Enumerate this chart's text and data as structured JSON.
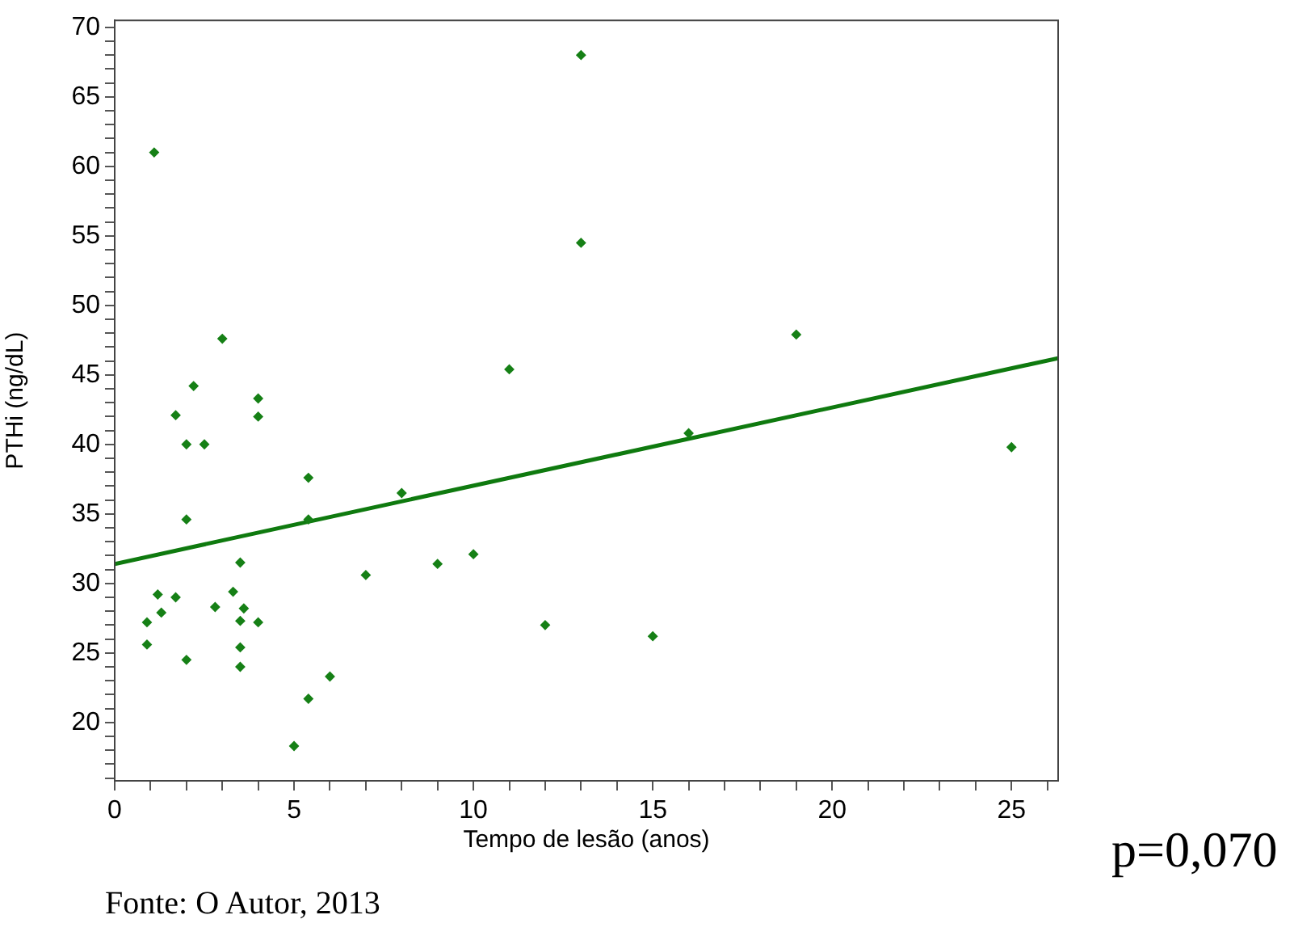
{
  "chart_data": {
    "type": "scatter",
    "xlabel": "Tempo de lesão (anos)",
    "ylabel": "PTHi (ng/dL)",
    "annotations": [
      "p=0,070",
      "Fonte: O Autor, 2013"
    ],
    "xlim": [
      0,
      26.3
    ],
    "ylim": [
      15.8,
      70.5
    ],
    "xticks": [
      0,
      {
        "value": 1,
        "label": null
      },
      {
        "value": 2,
        "label": null
      },
      {
        "value": 3,
        "label": null
      },
      {
        "value": 4,
        "label": null
      },
      5,
      {
        "value": 6,
        "label": null
      },
      {
        "value": 7,
        "label": null
      },
      {
        "value": 8,
        "label": null
      },
      {
        "value": 9,
        "label": null
      },
      10,
      {
        "value": 11,
        "label": null
      },
      {
        "value": 12,
        "label": null
      },
      {
        "value": 13,
        "label": null
      },
      {
        "value": 14,
        "label": null
      },
      15,
      {
        "value": 16,
        "label": null
      },
      {
        "value": 17,
        "label": null
      },
      {
        "value": 18,
        "label": null
      },
      {
        "value": 19,
        "label": null
      },
      20,
      {
        "value": 21,
        "label": null
      },
      {
        "value": 22,
        "label": null
      },
      {
        "value": 23,
        "label": null
      },
      {
        "value": 24,
        "label": null
      },
      25,
      {
        "value": 26,
        "label": null
      }
    ],
    "yticks": [
      {
        "value": 16,
        "label": null
      },
      {
        "value": 17,
        "label": null
      },
      {
        "value": 18,
        "label": null
      },
      {
        "value": 19,
        "label": null
      },
      20,
      {
        "value": 21,
        "label": null
      },
      {
        "value": 22,
        "label": null
      },
      {
        "value": 23,
        "label": null
      },
      {
        "value": 24,
        "label": null
      },
      25,
      {
        "value": 26,
        "label": null
      },
      {
        "value": 27,
        "label": null
      },
      {
        "value": 28,
        "label": null
      },
      {
        "value": 29,
        "label": null
      },
      30,
      {
        "value": 31,
        "label": null
      },
      {
        "value": 32,
        "label": null
      },
      {
        "value": 33,
        "label": null
      },
      {
        "value": 34,
        "label": null
      },
      35,
      {
        "value": 36,
        "label": null
      },
      {
        "value": 37,
        "label": null
      },
      {
        "value": 38,
        "label": null
      },
      {
        "value": 39,
        "label": null
      },
      40,
      {
        "value": 41,
        "label": null
      },
      {
        "value": 42,
        "label": null
      },
      {
        "value": 43,
        "label": null
      },
      {
        "value": 44,
        "label": null
      },
      45,
      {
        "value": 46,
        "label": null
      },
      {
        "value": 47,
        "label": null
      },
      {
        "value": 48,
        "label": null
      },
      {
        "value": 49,
        "label": null
      },
      50,
      {
        "value": 51,
        "label": null
      },
      {
        "value": 52,
        "label": null
      },
      {
        "value": 53,
        "label": null
      },
      {
        "value": 54,
        "label": null
      },
      55,
      {
        "value": 56,
        "label": null
      },
      {
        "value": 57,
        "label": null
      },
      {
        "value": 58,
        "label": null
      },
      {
        "value": 59,
        "label": null
      },
      60,
      {
        "value": 61,
        "label": null
      },
      {
        "value": 62,
        "label": null
      },
      {
        "value": 63,
        "label": null
      },
      {
        "value": 64,
        "label": null
      },
      65,
      {
        "value": 66,
        "label": null
      },
      {
        "value": 67,
        "label": null
      },
      {
        "value": 68,
        "label": null
      },
      {
        "value": 69,
        "label": null
      },
      70
    ],
    "series": [
      {
        "marker": "diamond",
        "color": "#168016",
        "x": [
          0.9,
          0.9,
          1.2,
          1.3,
          1.7,
          2.0,
          2.0,
          2.8,
          3.3,
          3.5,
          3.6,
          3.5,
          3.5,
          3.5,
          4.0,
          5.4,
          5.4,
          5.0,
          5.4,
          6.0,
          7.0,
          8.0,
          9.0,
          10.0,
          12.0,
          1.1,
          1.7,
          2.2,
          2.0,
          2.5,
          3.0,
          4.0,
          4.0,
          13.0,
          13.0,
          11.0,
          19.0,
          16.0,
          25.0,
          15.0
        ],
        "values": [
          27.2,
          25.6,
          29.2,
          27.9,
          29.0,
          34.6,
          24.5,
          28.3,
          29.4,
          31.5,
          28.2,
          27.3,
          25.4,
          24.0,
          27.2,
          37.6,
          34.6,
          18.3,
          21.7,
          23.3,
          30.6,
          36.5,
          31.4,
          32.1,
          27.0,
          61.0,
          42.1,
          44.2,
          40.0,
          40.0,
          47.6,
          43.3,
          42.0,
          68.0,
          54.5,
          45.4,
          47.9,
          40.8,
          39.8,
          26.2
        ]
      },
      {
        "type": "line",
        "marker": "none",
        "color": "#0f7a0f",
        "x": [
          0,
          26.3
        ],
        "values": [
          31.4,
          46.2
        ]
      }
    ]
  }
}
